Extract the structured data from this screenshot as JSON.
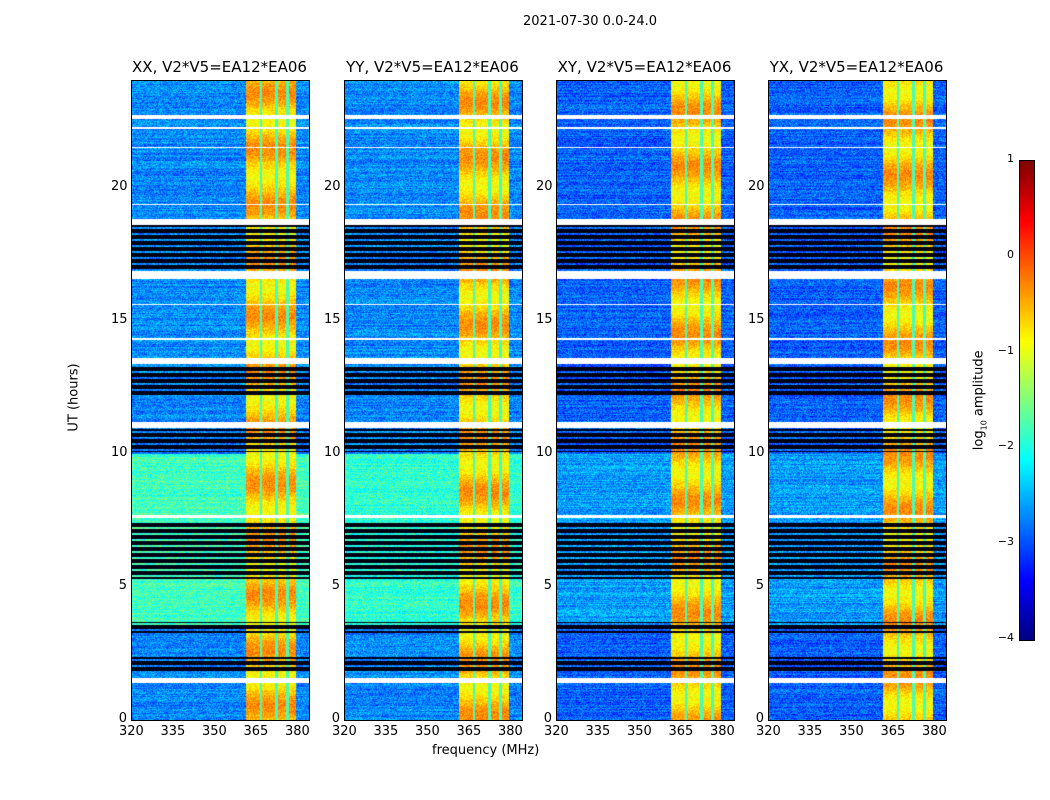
{
  "chart_data": {
    "type": "heatmap",
    "title": "2021-07-30 0.0-24.0",
    "xlabel": "frequency (MHz)",
    "ylabel": "UT (hours)",
    "xlim": [
      320,
      384
    ],
    "ylim": [
      0,
      24
    ],
    "xticks": [
      "320",
      "335",
      "350",
      "365",
      "380"
    ],
    "yticks": [
      "0",
      "5",
      "10",
      "15",
      "20"
    ],
    "colorbar": {
      "label_prefix": "log",
      "label_sub": "10",
      "label_suffix": " amplitude",
      "range": [
        -4,
        1
      ],
      "ticks": [
        "1",
        "0",
        "−1",
        "−2",
        "−3",
        "−4"
      ],
      "colormap": "jet"
    },
    "panels": [
      {
        "title": "XX, V2*V5=EA12*EA06",
        "base_log_amp": -2.7,
        "enhanced_hours": [
          3.5,
          10
        ],
        "enhanced_log_amp": -1.8
      },
      {
        "title": "YY, V2*V5=EA12*EA06",
        "base_log_amp": -2.7,
        "enhanced_hours": [
          3.5,
          10
        ],
        "enhanced_log_amp": -1.9
      },
      {
        "title": "XY, V2*V5=EA12*EA06",
        "base_log_amp": -2.9,
        "enhanced_hours": [
          3.5,
          10
        ],
        "enhanced_log_amp": -2.6
      },
      {
        "title": "YX, V2*V5=EA12*EA06",
        "base_log_amp": -2.9,
        "enhanced_hours": [
          3.5,
          10
        ],
        "enhanced_log_amp": -2.6
      }
    ],
    "rfi_band_mhz": [
      361,
      379
    ],
    "rfi_log_amp": -0.6,
    "rfi_gaps_mhz": [
      366.5,
      372,
      376
    ],
    "flagged_hours_white": [
      [
        22.6,
        22.75
      ],
      [
        22.2,
        22.28
      ],
      [
        21.5,
        21.55
      ],
      [
        19.35,
        19.4
      ],
      [
        18.6,
        18.85
      ],
      [
        16.6,
        16.9
      ],
      [
        15.6,
        15.65
      ],
      [
        14.3,
        14.35
      ],
      [
        13.4,
        13.6
      ],
      [
        11.0,
        11.2
      ],
      [
        7.6,
        7.7
      ],
      [
        1.4,
        1.6
      ]
    ],
    "flagged_hours_black": [
      [
        16.9,
        18.6
      ],
      [
        12.2,
        13.35
      ],
      [
        10.1,
        10.95
      ],
      [
        5.3,
        7.5
      ],
      [
        3.3,
        3.7
      ],
      [
        1.8,
        2.4
      ]
    ]
  }
}
